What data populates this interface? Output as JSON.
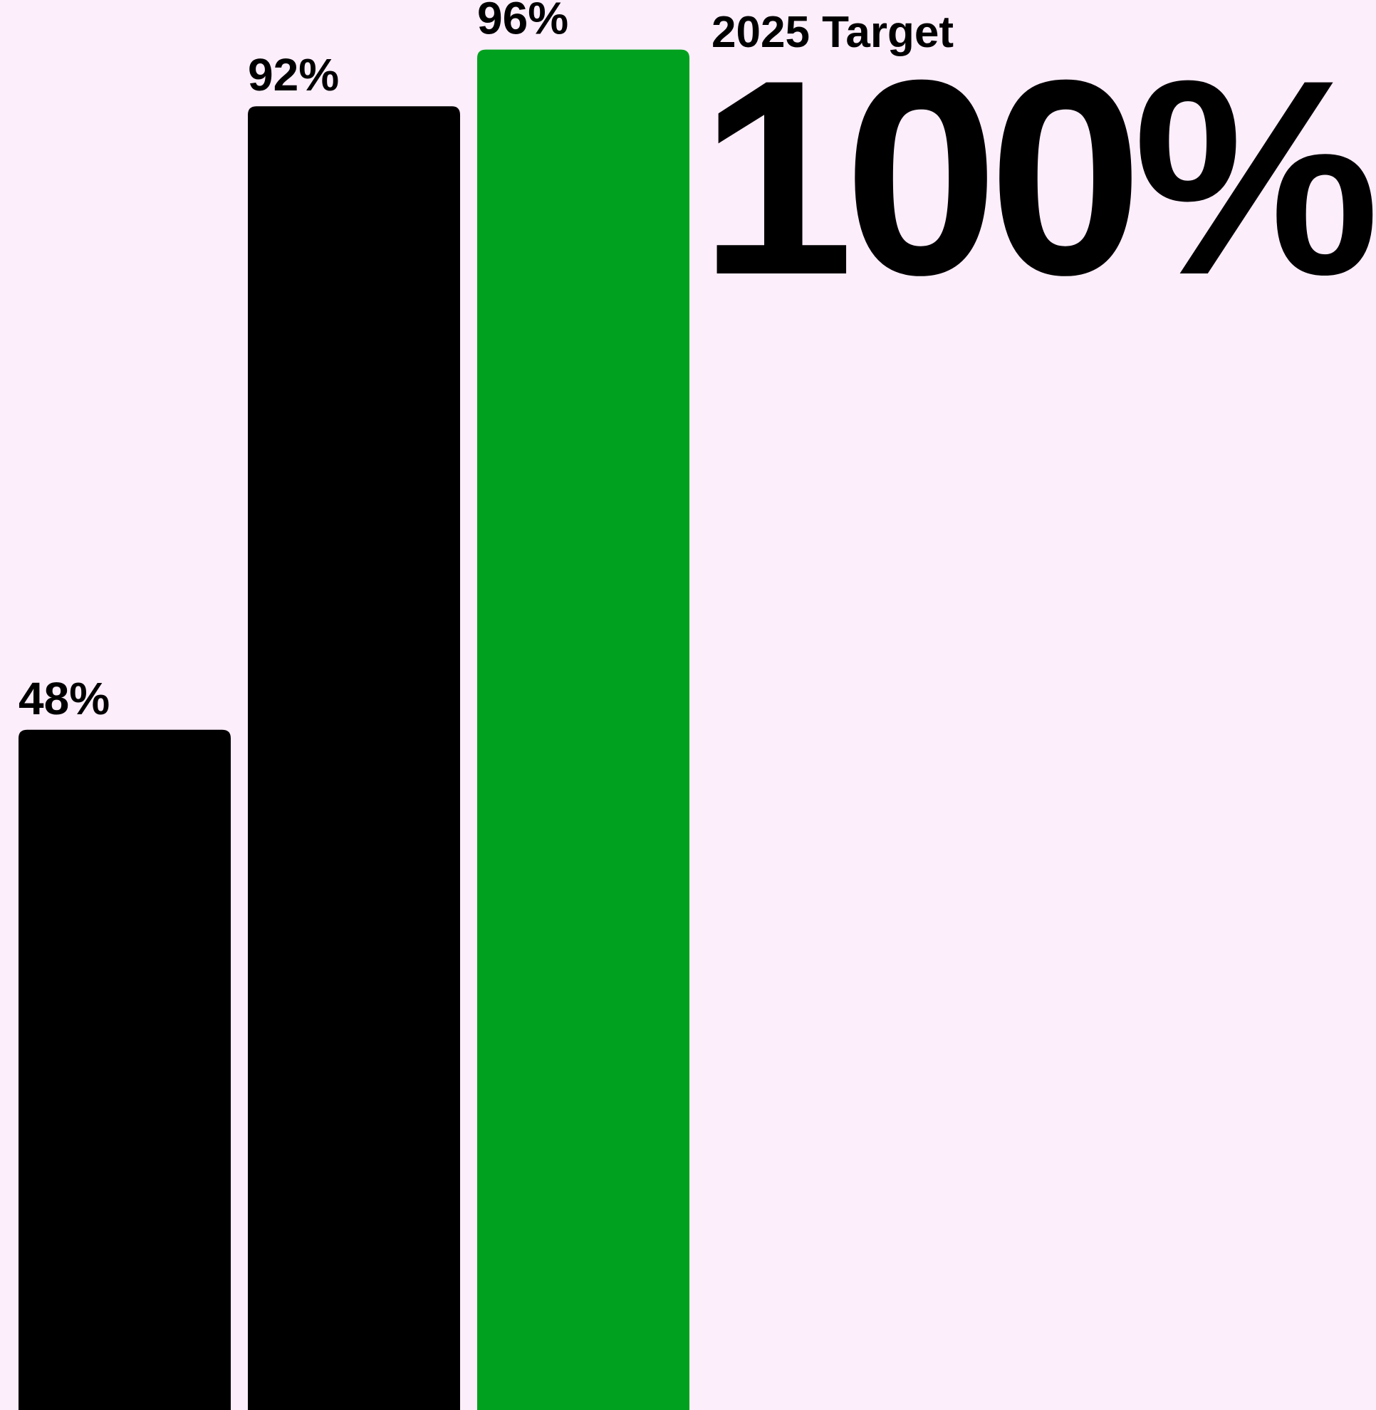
{
  "chart_data": {
    "type": "bar",
    "categories": [
      "",
      "",
      ""
    ],
    "values": [
      48,
      92,
      96
    ],
    "data_labels": [
      "48%",
      "92%",
      "96%"
    ],
    "bar_colors": [
      "#000000",
      "#000000",
      "#00a11e"
    ],
    "ylim": [
      0,
      100
    ],
    "grid": false,
    "reference_line": {
      "value": 100,
      "color": "#7a7378"
    },
    "target": {
      "label": "2025 Target",
      "value_text": "100%"
    },
    "title": "",
    "xlabel": "",
    "ylabel": ""
  },
  "colors": {
    "background": "#fdeefb",
    "highlight": "#00a11e",
    "bar": "#000000",
    "reference_line": "#7a7378"
  }
}
